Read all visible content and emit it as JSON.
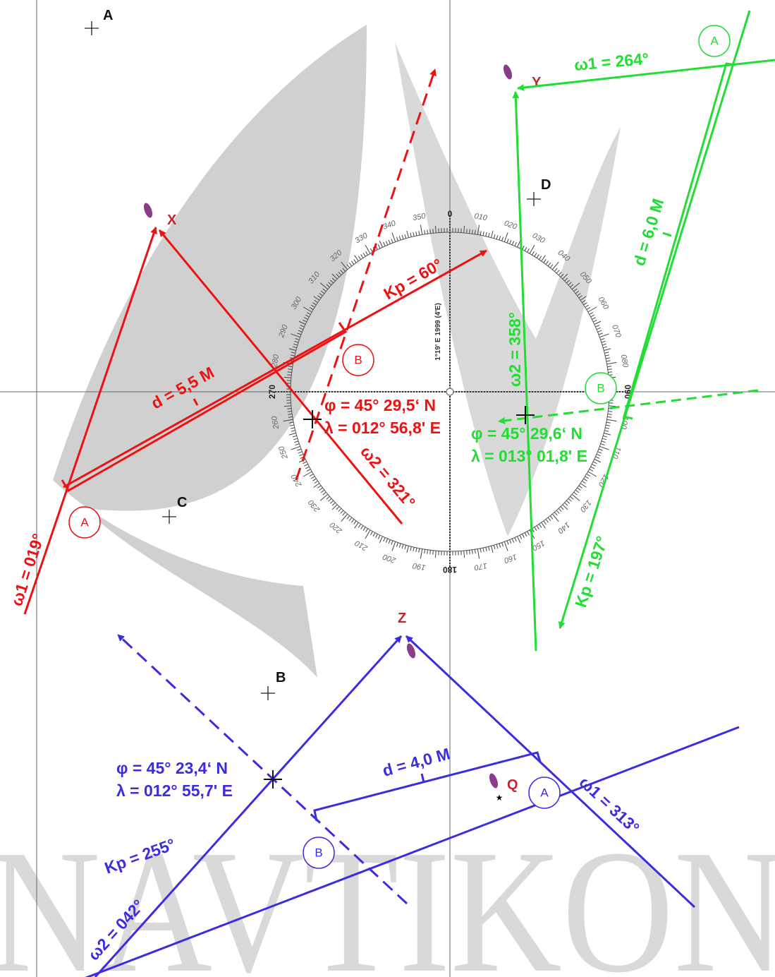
{
  "points": [
    {
      "label": "A"
    },
    {
      "label": "B"
    },
    {
      "label": "C"
    },
    {
      "label": "D"
    }
  ],
  "landmarks": [
    {
      "label": "X"
    },
    {
      "label": "Y"
    },
    {
      "label": "Z"
    },
    {
      "label": "Q"
    }
  ],
  "compass": {
    "labels": [
      "0",
      "010",
      "020",
      "030",
      "040",
      "050",
      "060",
      "070",
      "080",
      "090",
      "100",
      "110",
      "120",
      "130",
      "140",
      "150",
      "160",
      "170",
      "180",
      "190",
      "200",
      "210",
      "220",
      "230",
      "240",
      "250",
      "260",
      "270",
      "280",
      "290",
      "300",
      "310",
      "320",
      "330",
      "340",
      "350"
    ],
    "variation": "1°19' E 1999 (4'E)"
  },
  "red": {
    "course": "Kp = 60°",
    "distance": "d = 5,5 M",
    "lat": "φ = 45° 29,5‘ N",
    "lon": "λ = 012° 56,8' E",
    "bearing1": "ω1 = 019°",
    "bearing2": "ω2 = 321°",
    "pos_a": "A",
    "pos_b": "B"
  },
  "green": {
    "course": "Kp = 197°",
    "distance": "d = 6,0 M",
    "lat": "φ = 45° 29,6‘ N",
    "lon": "λ = 013° 01,8' E",
    "bearing1": "ω1 = 264°",
    "bearing2": "ω2 = 358°",
    "pos_a": "A",
    "pos_b": "B"
  },
  "blue": {
    "course": "Kp = 255°",
    "distance": "d = 4,0 M",
    "lat": "φ = 45° 23,4‘ N",
    "lon": "λ = 012° 55,7' E",
    "bearing1": "ω1 = 313°",
    "bearing2": "ω2 = 042°",
    "pos_a": "A",
    "pos_b": "B"
  },
  "watermark": "NAVTIKON"
}
